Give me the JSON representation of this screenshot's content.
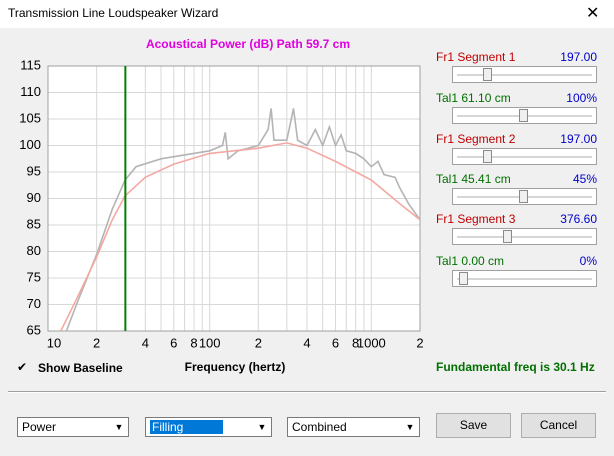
{
  "window": {
    "title": "Transmission Line Loudspeaker Wizard"
  },
  "chart_data": {
    "type": "line",
    "title": "Acoustical Power (dB)   Path 59.7 cm",
    "x_label": "Frequency (hertz)",
    "xlog": true,
    "xlim": [
      10,
      2000
    ],
    "ylim": [
      65,
      115
    ],
    "yticks": [
      65,
      70,
      75,
      80,
      85,
      90,
      95,
      100,
      105,
      110,
      115
    ],
    "xticks": [
      {
        "value": 10,
        "label": "10"
      },
      {
        "value": 20,
        "label": "2"
      },
      {
        "value": 40,
        "label": "4"
      },
      {
        "value": 60,
        "label": "6"
      },
      {
        "value": 80,
        "label": "8"
      },
      {
        "value": 100,
        "label": "100"
      },
      {
        "value": 200,
        "label": "2"
      },
      {
        "value": 400,
        "label": "4"
      },
      {
        "value": 600,
        "label": "6"
      },
      {
        "value": 800,
        "label": "8"
      },
      {
        "value": 1000,
        "label": "1000"
      },
      {
        "value": 2000,
        "label": "2"
      }
    ],
    "xgrid_minor": [
      30,
      50,
      70,
      90,
      300,
      500,
      700,
      900
    ],
    "grid": true,
    "vline": {
      "x": 30.1,
      "color": "#008000"
    },
    "annotation": "Fundamental freq is 30.1 Hz",
    "series": [
      {
        "color": "#b4b4b4",
        "x": [
          13,
          15,
          20,
          25,
          30,
          35,
          50,
          100,
          120,
          125,
          130,
          150,
          200,
          230,
          240,
          250,
          300,
          330,
          350,
          400,
          450,
          500,
          550,
          600,
          650,
          700,
          800,
          900,
          1000,
          1100,
          1200,
          1400,
          1500,
          1700,
          2000
        ],
        "values": [
          65,
          70,
          79.5,
          88,
          93.5,
          96,
          97.5,
          99,
          100,
          102.5,
          97.5,
          99,
          100,
          103,
          107,
          101,
          101,
          107,
          101,
          100,
          103,
          100,
          103.5,
          100,
          102,
          99,
          98.5,
          97.5,
          96,
          97,
          94.5,
          94,
          92,
          89,
          86
        ]
      },
      {
        "color": "#f4a8a2",
        "x": [
          12,
          15,
          20,
          25,
          30,
          40,
          60,
          100,
          200,
          300,
          400,
          600,
          1000,
          1500,
          2000
        ],
        "values": [
          65,
          71,
          79,
          86,
          90.5,
          94,
          96.5,
          98.5,
          99.5,
          100.5,
          99.5,
          97,
          93.5,
          89,
          86
        ]
      }
    ]
  },
  "controls": [
    {
      "label": "Fr1  Segment 1",
      "value": "197.00"
    },
    {
      "label": "Tal1  61.10 cm",
      "value": "100%"
    },
    {
      "label": "Fr1  Segment 2",
      "value": "197.00"
    },
    {
      "label": "Tal1  45.41 cm",
      "value": "45%"
    },
    {
      "label": "Fr1  Segment 3",
      "value": "376.60"
    },
    {
      "label": "Tal1  0.00 cm",
      "value": "0%"
    }
  ],
  "checkbox": {
    "label": "Show Baseline",
    "checked": true
  },
  "dropdowns": [
    "Power",
    "Filling",
    "Combined"
  ],
  "buttons": [
    "Save",
    "Cancel"
  ]
}
